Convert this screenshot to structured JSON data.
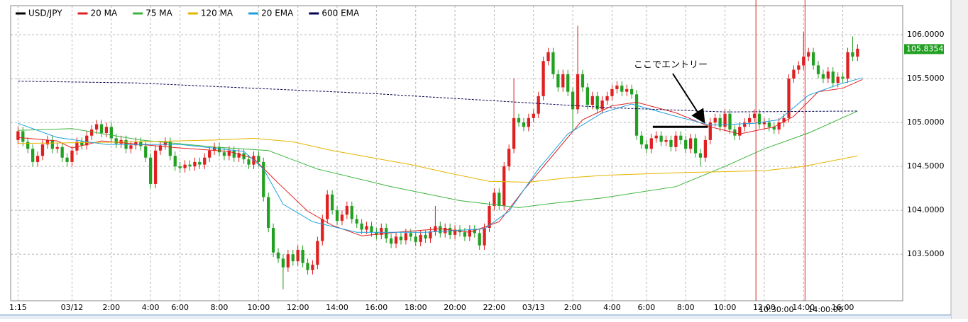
{
  "chart_data": {
    "type": "candlestick",
    "xlim": [
      -1.5,
      180.2
    ],
    "ylim": [
      102.97,
      106.33
    ],
    "grid": true,
    "up_color": "#e02020",
    "down_color": "#22a022",
    "xticks": [
      {
        "value": 0,
        "label": "1:15"
      },
      {
        "value": 11,
        "label": "03/12"
      },
      {
        "value": 19,
        "label": "2:00"
      },
      {
        "value": 27,
        "label": "4:00"
      },
      {
        "value": 33,
        "label": "6:00"
      },
      {
        "value": 41,
        "label": "8:00"
      },
      {
        "value": 49,
        "label": "10:00"
      },
      {
        "value": 57,
        "label": "12:00"
      },
      {
        "value": 65,
        "label": "14:00"
      },
      {
        "value": 73,
        "label": "16:00"
      },
      {
        "value": 81,
        "label": "18:00"
      },
      {
        "value": 89,
        "label": "20:00"
      },
      {
        "value": 97,
        "label": "22:00"
      },
      {
        "value": 105,
        "label": "03/13"
      },
      {
        "value": 113,
        "label": "2:00"
      },
      {
        "value": 121,
        "label": "4:00"
      },
      {
        "value": 128,
        "label": "6:00"
      },
      {
        "value": 136,
        "label": "8:00"
      },
      {
        "value": 144,
        "label": "10:00"
      },
      {
        "value": 152,
        "label": "12:00"
      },
      {
        "value": 160,
        "label": "14:00"
      },
      {
        "value": 168,
        "label": "16:00"
      }
    ],
    "yticks": [
      {
        "value": 103.5,
        "label": "103.5000"
      },
      {
        "value": 104,
        "label": "104.0000"
      },
      {
        "value": 104.5,
        "label": "104.5000"
      },
      {
        "value": 105,
        "label": "105.0000"
      },
      {
        "value": 105.5,
        "label": "105.5000"
      },
      {
        "value": 106,
        "label": "106.0000"
      }
    ],
    "last_price": {
      "value": 105.8354,
      "label": "105.8354"
    },
    "markers": [
      {
        "x": 150.3,
        "label": "10:30:00"
      },
      {
        "x": 160.3,
        "label": "14:00:00"
      }
    ],
    "entry_line": {
      "value": 104.95,
      "x": [
        129.3,
        140.5
      ]
    },
    "annotation": "ここでエントリー",
    "series": [
      {
        "name": "USD/JPY",
        "color": "#000000",
        "open": [
          104.8,
          104.9,
          104.78,
          104.7,
          104.55,
          104.62,
          104.75,
          104.8,
          104.7,
          104.72,
          104.6,
          104.55,
          104.68,
          104.78,
          104.74,
          104.85,
          104.92,
          104.98,
          104.88,
          104.95,
          104.82,
          104.76,
          104.8,
          104.7,
          104.74,
          104.78,
          104.73,
          104.6,
          104.3,
          104.68,
          104.74,
          104.78,
          104.62,
          104.5,
          104.48,
          104.52,
          104.5,
          104.55,
          104.52,
          104.6,
          104.68,
          104.72,
          104.66,
          104.62,
          104.68,
          104.6,
          104.65,
          104.58,
          104.52,
          104.62,
          104.55,
          104.15,
          103.8,
          103.52,
          103.45,
          103.35,
          103.5,
          103.42,
          103.55,
          103.4,
          103.32,
          103.38,
          103.65,
          103.9,
          104.18,
          104.0,
          103.88,
          103.95,
          104.05,
          103.9,
          103.85,
          103.78,
          103.82,
          103.75,
          103.72,
          103.8,
          103.68,
          103.62,
          103.7,
          103.66,
          103.74,
          103.7,
          103.64,
          103.72,
          103.68,
          103.76,
          103.82,
          103.74,
          103.8,
          103.72,
          103.78,
          103.75,
          103.7,
          103.78,
          103.74,
          103.6,
          103.8,
          104.05,
          104.2,
          104.05,
          104.5,
          104.7,
          105.05,
          105.0,
          104.95,
          105.05,
          105.1,
          105.3,
          105.7,
          105.8,
          105.55,
          105.4,
          105.55,
          105.35,
          105.15,
          105.55,
          105.4,
          105.2,
          105.3,
          105.15,
          105.25,
          105.3,
          105.38,
          105.42,
          105.35,
          105.38,
          105.32,
          104.85,
          104.75,
          104.7,
          104.82,
          104.85,
          104.78,
          104.8,
          104.72,
          104.85,
          104.8,
          104.7,
          104.82,
          104.65,
          104.6,
          104.8,
          105.0,
          105.05,
          104.95,
          105.1,
          104.92,
          104.85,
          104.95,
          105.0,
          105.05,
          105.1,
          104.98,
          105.0,
          104.95,
          104.92,
          105.0,
          105.05,
          105.5,
          105.6,
          105.65,
          105.75,
          105.8,
          105.65,
          105.55,
          105.5,
          105.58,
          105.45,
          105.52,
          105.5,
          105.8,
          105.75
        ],
        "high": [
          104.95,
          104.95,
          104.83,
          104.75,
          104.67,
          104.8,
          104.85,
          104.85,
          104.77,
          104.77,
          104.65,
          104.73,
          104.83,
          104.83,
          104.9,
          104.97,
          105.03,
          105.03,
          105.0,
          105.0,
          104.87,
          104.85,
          104.85,
          104.79,
          104.83,
          104.83,
          104.78,
          104.65,
          104.73,
          104.79,
          104.83,
          104.83,
          104.67,
          104.55,
          104.57,
          104.57,
          104.6,
          104.6,
          104.65,
          104.73,
          104.77,
          104.77,
          104.71,
          104.73,
          104.73,
          104.7,
          104.7,
          104.63,
          104.67,
          104.67,
          104.6,
          104.2,
          103.85,
          103.57,
          103.5,
          103.55,
          103.55,
          103.6,
          103.6,
          103.45,
          103.43,
          103.7,
          103.95,
          104.23,
          104.23,
          104.05,
          104.0,
          104.1,
          104.1,
          103.95,
          103.9,
          103.87,
          103.87,
          103.8,
          103.85,
          103.85,
          103.73,
          103.75,
          103.75,
          103.79,
          103.79,
          103.75,
          103.77,
          103.77,
          103.81,
          104.05,
          103.87,
          103.85,
          103.85,
          103.83,
          103.83,
          103.8,
          103.83,
          103.83,
          103.79,
          103.85,
          104.1,
          104.25,
          104.25,
          104.55,
          104.75,
          105.5,
          105.1,
          105.05,
          105.1,
          105.15,
          105.35,
          105.75,
          105.85,
          105.85,
          105.6,
          105.6,
          105.6,
          105.4,
          106.1,
          105.6,
          105.45,
          105.35,
          105.35,
          105.3,
          105.35,
          105.43,
          105.47,
          105.47,
          105.43,
          105.43,
          105.37,
          104.9,
          104.8,
          104.87,
          104.9,
          104.9,
          104.85,
          104.85,
          104.9,
          104.9,
          104.85,
          104.87,
          104.87,
          104.7,
          104.85,
          105.05,
          105.1,
          105.1,
          105.15,
          105.15,
          104.97,
          105.0,
          105.05,
          105.1,
          105.15,
          105.15,
          105.05,
          105.05,
          105.0,
          105.05,
          105.1,
          105.55,
          105.65,
          105.7,
          106.03,
          105.85,
          105.85,
          105.7,
          105.6,
          105.63,
          105.63,
          105.57,
          105.57,
          105.85,
          105.98,
          105.89
        ],
        "low": [
          104.75,
          104.73,
          104.65,
          104.5,
          104.5,
          104.57,
          104.7,
          104.65,
          104.65,
          104.55,
          104.5,
          104.5,
          104.63,
          104.69,
          104.69,
          104.8,
          104.87,
          104.83,
          104.83,
          104.77,
          104.71,
          104.71,
          104.65,
          104.65,
          104.69,
          104.68,
          104.55,
          104.25,
          104.25,
          104.63,
          104.69,
          104.57,
          104.45,
          104.43,
          104.43,
          104.45,
          104.45,
          104.47,
          104.47,
          104.55,
          104.63,
          104.61,
          104.57,
          104.57,
          104.55,
          104.55,
          104.53,
          104.47,
          104.47,
          104.5,
          104.1,
          103.75,
          103.47,
          103.4,
          103.1,
          103.3,
          103.37,
          103.37,
          103.35,
          103.27,
          103.27,
          103.33,
          103.6,
          103.85,
          103.95,
          103.83,
          103.83,
          103.9,
          103.85,
          103.8,
          103.73,
          103.73,
          103.7,
          103.67,
          103.67,
          103.63,
          103.57,
          103.57,
          103.61,
          103.61,
          103.65,
          103.59,
          103.59,
          103.63,
          103.63,
          103.71,
          103.69,
          103.69,
          103.67,
          103.67,
          103.7,
          103.65,
          103.65,
          103.69,
          103.55,
          103.55,
          103.75,
          104.0,
          104.0,
          104.0,
          104.45,
          104.65,
          104.95,
          104.9,
          104.9,
          105.0,
          105.05,
          105.25,
          105.65,
          105.5,
          105.35,
          105.35,
          105.3,
          104.9,
          105.1,
          105.35,
          105.15,
          105.15,
          105.1,
          105.1,
          105.2,
          105.25,
          105.33,
          105.3,
          105.3,
          105.27,
          104.8,
          104.7,
          104.65,
          104.65,
          104.77,
          104.73,
          104.73,
          104.67,
          104.67,
          104.75,
          104.65,
          104.65,
          104.6,
          104.5,
          104.55,
          104.75,
          104.95,
          104.9,
          104.9,
          104.87,
          104.8,
          104.8,
          104.9,
          104.95,
          105.0,
          104.93,
          104.93,
          104.9,
          104.87,
          104.87,
          104.95,
          105.0,
          105.45,
          105.55,
          105.6,
          105.7,
          105.6,
          105.5,
          105.45,
          105.45,
          105.4,
          105.4,
          105.45,
          105.45,
          105.7,
          105.7
        ],
        "close": [
          104.9,
          104.78,
          104.7,
          104.55,
          104.62,
          104.75,
          104.8,
          104.7,
          104.72,
          104.6,
          104.55,
          104.68,
          104.78,
          104.74,
          104.85,
          104.92,
          104.98,
          104.88,
          104.95,
          104.82,
          104.76,
          104.8,
          104.7,
          104.74,
          104.78,
          104.73,
          104.6,
          104.3,
          104.68,
          104.74,
          104.78,
          104.62,
          104.5,
          104.48,
          104.52,
          104.5,
          104.55,
          104.52,
          104.6,
          104.68,
          104.72,
          104.66,
          104.62,
          104.68,
          104.6,
          104.65,
          104.58,
          104.52,
          104.62,
          104.55,
          104.15,
          103.8,
          103.52,
          103.45,
          103.35,
          103.5,
          103.42,
          103.55,
          103.4,
          103.32,
          103.38,
          103.65,
          103.9,
          104.18,
          104.0,
          103.88,
          103.95,
          104.05,
          103.9,
          103.85,
          103.78,
          103.82,
          103.75,
          103.72,
          103.8,
          103.68,
          103.62,
          103.7,
          103.66,
          103.74,
          103.7,
          103.64,
          103.72,
          103.68,
          103.76,
          103.82,
          103.74,
          103.8,
          103.72,
          103.78,
          103.75,
          103.7,
          103.78,
          103.74,
          103.6,
          103.8,
          104.05,
          104.2,
          104.05,
          104.5,
          104.7,
          105.05,
          105.0,
          104.95,
          105.05,
          105.1,
          105.3,
          105.7,
          105.8,
          105.55,
          105.4,
          105.55,
          105.35,
          105.15,
          105.55,
          105.4,
          105.2,
          105.3,
          105.15,
          105.25,
          105.3,
          105.38,
          105.42,
          105.35,
          105.38,
          105.32,
          104.85,
          104.75,
          104.7,
          104.82,
          104.85,
          104.78,
          104.8,
          104.72,
          104.85,
          104.8,
          104.7,
          104.82,
          104.65,
          104.6,
          104.8,
          105.0,
          105.05,
          104.95,
          105.1,
          104.92,
          104.85,
          104.95,
          105.0,
          105.05,
          105.1,
          104.98,
          105.0,
          104.95,
          104.92,
          105.0,
          105.05,
          105.5,
          105.6,
          105.65,
          105.75,
          105.8,
          105.65,
          105.55,
          105.5,
          105.58,
          105.45,
          105.52,
          105.5,
          105.8,
          105.75,
          105.84
        ]
      },
      {
        "name": "20 MA",
        "color": "#e02020",
        "x": [
          0,
          8,
          11,
          17,
          25,
          33,
          43,
          48,
          53,
          59,
          64,
          70,
          77,
          86,
          92,
          98,
          103,
          109,
          115,
          121,
          126,
          134,
          141,
          147,
          154,
          158,
          163,
          168,
          172
        ],
        "values": [
          104.83,
          104.79,
          104.71,
          104.79,
          104.75,
          104.71,
          104.67,
          104.59,
          104.31,
          103.99,
          103.83,
          103.71,
          103.75,
          103.79,
          103.75,
          103.87,
          104.23,
          104.63,
          105.03,
          105.19,
          105.23,
          105.11,
          104.95,
          104.87,
          104.95,
          105.07,
          105.35,
          105.39,
          105.49
        ]
      },
      {
        "name": "75 MA",
        "color": "#3cb43c",
        "x": [
          0,
          11,
          25,
          40,
          51,
          61,
          76,
          90,
          102,
          109,
          119,
          134,
          144,
          152,
          161,
          171
        ],
        "values": [
          104.91,
          104.93,
          104.8,
          104.72,
          104.68,
          104.47,
          104.27,
          104.11,
          104.03,
          104.08,
          104.14,
          104.27,
          104.5,
          104.7,
          104.88,
          105.13
        ]
      },
      {
        "name": "120 MA",
        "color": "#e6b400",
        "x": [
          0,
          24,
          40,
          48,
          56,
          64,
          72,
          80,
          88,
          96,
          104,
          112,
          120,
          136,
          152,
          160,
          171
        ],
        "values": [
          104.76,
          104.78,
          104.8,
          104.82,
          104.78,
          104.68,
          104.6,
          104.52,
          104.42,
          104.33,
          104.32,
          104.37,
          104.4,
          104.43,
          104.45,
          104.5,
          104.62
        ]
      },
      {
        "name": "20 EMA",
        "color": "#1ea0e0",
        "x": [
          0,
          8,
          18,
          33,
          46,
          50,
          54,
          60,
          69,
          83,
          95,
          100,
          106,
          112,
          119,
          125,
          134,
          141,
          150,
          155,
          161,
          167,
          172
        ],
        "values": [
          104.99,
          104.83,
          104.75,
          104.75,
          104.67,
          104.47,
          104.07,
          103.87,
          103.75,
          103.75,
          103.79,
          103.99,
          104.47,
          104.87,
          105.11,
          105.21,
          105.07,
          104.97,
          104.99,
          105.03,
          105.31,
          105.43,
          105.51
        ]
      },
      {
        "name": "600 EMA",
        "color": "#000050",
        "dashed": true,
        "x": [
          0,
          24,
          48,
          72,
          96,
          120,
          144,
          171
        ],
        "values": [
          105.47,
          105.45,
          105.39,
          105.33,
          105.25,
          105.17,
          105.12,
          105.13
        ]
      }
    ]
  }
}
